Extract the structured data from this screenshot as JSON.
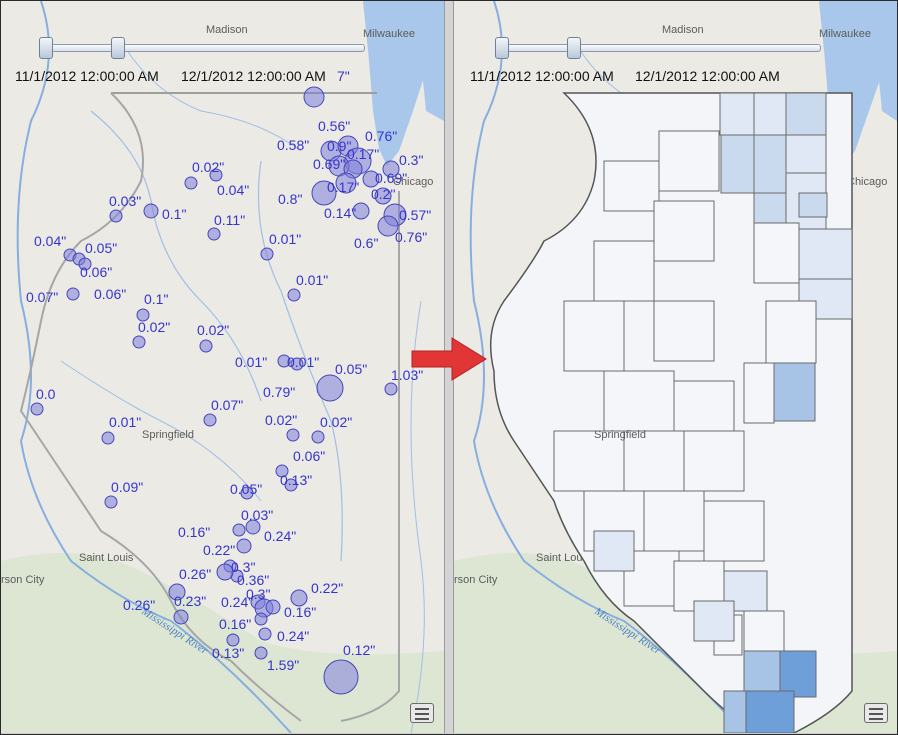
{
  "left_panel": {
    "time_start": "11/1/2012 12:00:00 AM",
    "time_end": "12/1/2012 12:00:00 AM",
    "legend_button_icon": "legend-icon"
  },
  "right_panel": {
    "time_start": "11/1/2012 12:00:00 AM",
    "time_end": "12/1/2012 12:00:00 AM",
    "legend_button_icon": "legend-icon"
  },
  "map_labels": {
    "madison": "Madison",
    "milwaukee": "Milwaukee",
    "chicago": "Chicago",
    "springfield": "Springfield",
    "saint_louis": "Saint Louis",
    "jefferson_city": "rson City",
    "mississippi_river": "Mississippi River"
  },
  "colors": {
    "water": "#a9c7ea",
    "land": "#eceae4",
    "symbol_fill": "#8080dd",
    "symbol_stroke": "#4545bb",
    "value_label": "#3535cc",
    "arrow": "#e23636",
    "choropleth_ramp": [
      "#f4f6fa",
      "#dfe8f4",
      "#c9daee",
      "#a7c3e6",
      "#6f9fd8"
    ]
  },
  "precipitation_labels": [
    {
      "text": "7\""
    },
    {
      "text": "0.56\""
    },
    {
      "text": "0.58\""
    },
    {
      "text": "0.9\""
    },
    {
      "text": "0.76\""
    },
    {
      "text": "0.17\""
    },
    {
      "text": "0.3\""
    },
    {
      "text": "0.69\""
    },
    {
      "text": "0.69\""
    },
    {
      "text": "0.17\""
    },
    {
      "text": "0.2\""
    },
    {
      "text": "0.8\""
    },
    {
      "text": "0.14\""
    },
    {
      "text": "0.57\""
    },
    {
      "text": "0.6\""
    },
    {
      "text": "0.76\""
    },
    {
      "text": "0.02\""
    },
    {
      "text": "0.04\""
    },
    {
      "text": "0.03\""
    },
    {
      "text": "0.1\""
    },
    {
      "text": "0.11\""
    },
    {
      "text": "0.01\""
    },
    {
      "text": "0.04\""
    },
    {
      "text": "0.05\""
    },
    {
      "text": "0.06\""
    },
    {
      "text": "0.07\""
    },
    {
      "text": "0.06\""
    },
    {
      "text": "0.01\""
    },
    {
      "text": "0.1\""
    },
    {
      "text": "0.02\""
    },
    {
      "text": "0.02\""
    },
    {
      "text": "0.01\""
    },
    {
      "text": "0.01\""
    },
    {
      "text": "0.05\""
    },
    {
      "text": "0.79\""
    },
    {
      "text": "1.03\""
    },
    {
      "text": "0.0"
    },
    {
      "text": "0.07\""
    },
    {
      "text": "0.01\""
    },
    {
      "text": "0.02\""
    },
    {
      "text": "0.02\""
    },
    {
      "text": "0.06\""
    },
    {
      "text": "0.13\""
    },
    {
      "text": "0.05\""
    },
    {
      "text": "0.09\""
    },
    {
      "text": "0.03\""
    },
    {
      "text": "0.16\""
    },
    {
      "text": "0.24\""
    },
    {
      "text": "0.22\""
    },
    {
      "text": "0.3\""
    },
    {
      "text": "0.26\""
    },
    {
      "text": "0.36\""
    },
    {
      "text": "0.26\""
    },
    {
      "text": "0.23\""
    },
    {
      "text": "0.24\""
    },
    {
      "text": "0.3\""
    },
    {
      "text": "0.22\""
    },
    {
      "text": "0.16\""
    },
    {
      "text": "0.16\""
    },
    {
      "text": "0.24\""
    },
    {
      "text": "0.13\""
    },
    {
      "text": "0.12\""
    },
    {
      "text": "1.59\""
    },
    {
      "text": "0.09\""
    }
  ]
}
